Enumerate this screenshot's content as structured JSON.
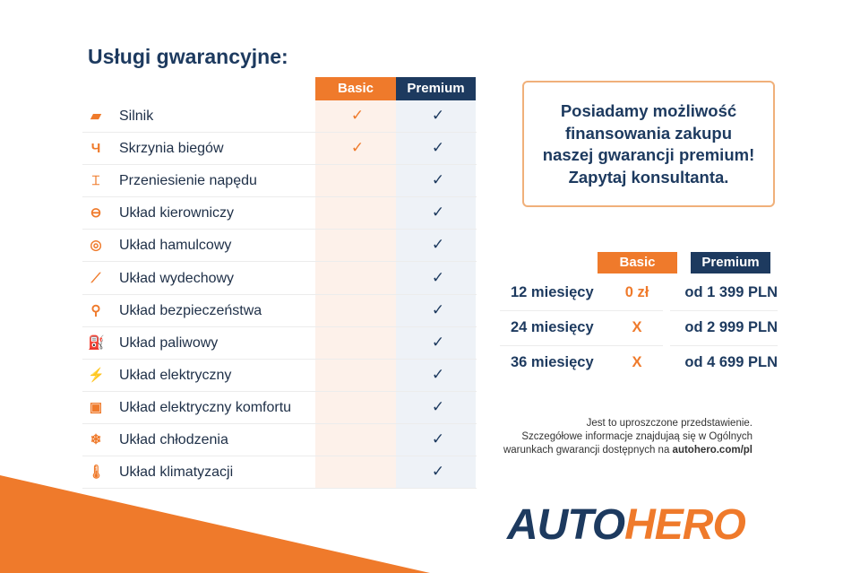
{
  "title": "Usługi gwarancyjne:",
  "plans": {
    "basic": "Basic",
    "premium": "Premium"
  },
  "colors": {
    "orange": "#ef7a2b",
    "navy": "#1d3a5f"
  },
  "services": [
    {
      "label": "Silnik",
      "icon": "engine-icon",
      "glyph": "▰",
      "basic": true,
      "premium": true
    },
    {
      "label": "Skrzynia biegów",
      "icon": "gearbox-icon",
      "glyph": "Ч",
      "basic": true,
      "premium": true
    },
    {
      "label": "Przeniesienie napędu",
      "icon": "drivetrain-icon",
      "glyph": "⌶",
      "basic": false,
      "premium": true
    },
    {
      "label": "Układ kierowniczy",
      "icon": "steering-wheel-icon",
      "glyph": "⊖",
      "basic": false,
      "premium": true
    },
    {
      "label": "Układ hamulcowy",
      "icon": "brake-disc-icon",
      "glyph": "◎",
      "basic": false,
      "premium": true
    },
    {
      "label": "Układ wydechowy",
      "icon": "exhaust-icon",
      "glyph": "⟋",
      "basic": false,
      "premium": true
    },
    {
      "label": "Układ bezpieczeństwa",
      "icon": "seatbelt-icon",
      "glyph": "⚲",
      "basic": false,
      "premium": true
    },
    {
      "label": "Układ paliwowy",
      "icon": "fuel-icon",
      "glyph": "⛽",
      "basic": false,
      "premium": true
    },
    {
      "label": "Układ elektryczny",
      "icon": "battery-icon",
      "glyph": "⚡",
      "basic": false,
      "premium": true
    },
    {
      "label": "Układ elektryczny komfortu",
      "icon": "chip-icon",
      "glyph": "▣",
      "basic": false,
      "premium": true
    },
    {
      "label": "Układ chłodzenia",
      "icon": "snowflake-icon",
      "glyph": "❄",
      "basic": false,
      "premium": true
    },
    {
      "label": "Układ klimatyzacji",
      "icon": "thermometer-icon",
      "glyph": "🌡",
      "basic": false,
      "premium": true
    }
  ],
  "check_glyph": "✓",
  "promo": [
    "Posiadamy możliwość",
    "finansowania zakupu",
    "naszej gwarancji premium!",
    "Zapytaj konsultanta."
  ],
  "pricing": [
    {
      "period": "12 miesięcy",
      "basic": "0 zł",
      "premium": "od 1 399 PLN"
    },
    {
      "period": "24 miesięcy",
      "basic": "X",
      "premium": "od 2 999 PLN"
    },
    {
      "period": "36 miesięcy",
      "basic": "X",
      "premium": "od 4 699 PLN"
    }
  ],
  "note": {
    "line1": "Jest to uproszczone przedstawienie.",
    "line2": "Szczegółowe informacje znajdujaą się w Ogólnych",
    "line3": "warunkach gwarancji dostępnych na ",
    "link": "autohero.com/pl"
  },
  "logo": {
    "part1": "AUTO",
    "part2": "HERO"
  }
}
